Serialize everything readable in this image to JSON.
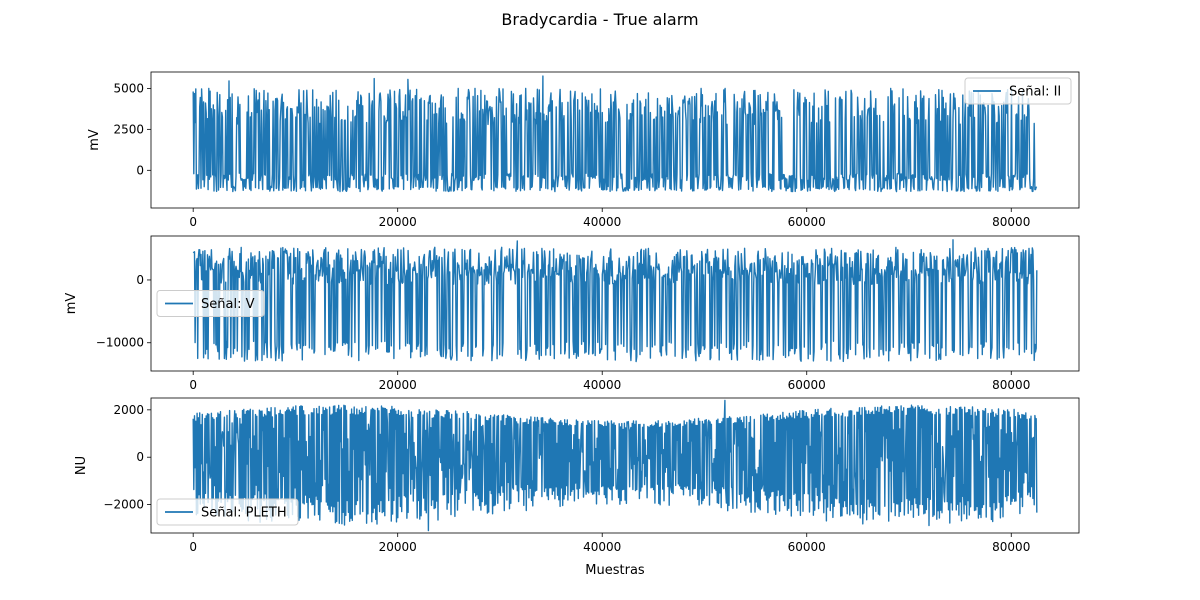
{
  "figure": {
    "title": "Bradycardia - True alarm",
    "xlabel": "Muestras",
    "line_color": "#1f77b4"
  },
  "chart_data": [
    {
      "type": "line",
      "ylabel": "mV",
      "legend_label": "Señal: II",
      "legend_position": "top-right",
      "xlim": [
        -4125,
        86625
      ],
      "ylim": [
        -2300,
        6000
      ],
      "x_ticks": [
        0,
        20000,
        40000,
        60000,
        80000
      ],
      "x_tick_labels": [
        "0",
        "20000",
        "40000",
        "60000",
        "80000"
      ],
      "y_ticks": [
        0,
        2500,
        5000
      ],
      "y_tick_labels": [
        "0",
        "2500",
        "5000"
      ],
      "x_range": [
        0,
        82500
      ],
      "signal": {
        "baseline": -400,
        "peak_max": 5000,
        "peak_min": 2800,
        "trough": -1300,
        "spikes": [
          [
            34200,
            5750
          ],
          [
            21000,
            5550
          ],
          [
            17700,
            5600
          ],
          [
            3500,
            5450
          ]
        ]
      }
    },
    {
      "type": "line",
      "ylabel": "mV",
      "legend_label": "Señal: V",
      "legend_position": "center-left",
      "xlim": [
        -4125,
        86625
      ],
      "ylim": [
        -14500,
        7000
      ],
      "x_ticks": [
        0,
        20000,
        40000,
        60000,
        80000
      ],
      "x_tick_labels": [
        "0",
        "20000",
        "40000",
        "60000",
        "80000"
      ],
      "y_ticks": [
        -10000,
        0
      ],
      "y_tick_labels": [
        "−10000",
        "0"
      ],
      "x_range": [
        0,
        82500
      ],
      "signal": {
        "baseline": 500,
        "peak_max": 5200,
        "peak_min": 1500,
        "trough": -13000,
        "spikes": [
          [
            31700,
            6200
          ],
          [
            74300,
            6400
          ]
        ]
      }
    },
    {
      "type": "line",
      "ylabel": "NU",
      "legend_label": "Señal: PLETH",
      "legend_position": "bottom-left",
      "xlim": [
        -4125,
        86625
      ],
      "ylim": [
        -3200,
        2500
      ],
      "x_ticks": [
        0,
        20000,
        40000,
        60000,
        80000
      ],
      "x_tick_labels": [
        "0",
        "20000",
        "40000",
        "60000",
        "80000"
      ],
      "y_ticks": [
        -2000,
        0,
        2000
      ],
      "y_tick_labels": [
        "−2000",
        "0",
        "2000"
      ],
      "x_range": [
        0,
        82500
      ],
      "signal": {
        "peak_max": 2200,
        "trough_min": -2900,
        "spikes": [
          [
            52000,
            2400
          ],
          [
            23000,
            -3100
          ]
        ]
      }
    }
  ]
}
